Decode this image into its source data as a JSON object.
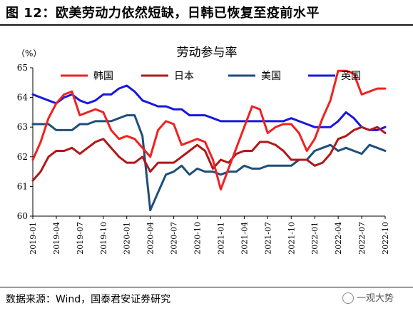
{
  "page": {
    "title": "图 12：欧美劳动力依然短缺，日韩已恢复至疫前水平",
    "source": "数据来源：Wind，国泰君安证券研究",
    "watermark": "一观大势"
  },
  "chart_data": {
    "type": "line",
    "title": "劳动参与率",
    "ylabel": "（%）",
    "xlabel": "",
    "ylim": [
      60,
      65
    ],
    "yticks": [
      60,
      61,
      62,
      63,
      64,
      65
    ],
    "grid": false,
    "legend_placement": "top",
    "xticks": [
      "2019-01",
      "2019-04",
      "2019-07",
      "2019-10",
      "2020-01",
      "2020-04",
      "2020-07",
      "2020-10",
      "2021-01",
      "2021-04",
      "2021-07",
      "2021-10",
      "2022-01",
      "2022-04",
      "2022-07",
      "2022-10"
    ],
    "x": [
      "2019-01",
      "2019-02",
      "2019-03",
      "2019-04",
      "2019-05",
      "2019-06",
      "2019-07",
      "2019-08",
      "2019-09",
      "2019-10",
      "2019-11",
      "2019-12",
      "2020-01",
      "2020-02",
      "2020-03",
      "2020-04",
      "2020-05",
      "2020-06",
      "2020-07",
      "2020-08",
      "2020-09",
      "2020-10",
      "2020-11",
      "2020-12",
      "2021-01",
      "2021-02",
      "2021-03",
      "2021-04",
      "2021-05",
      "2021-06",
      "2021-07",
      "2021-08",
      "2021-09",
      "2021-10",
      "2021-11",
      "2021-12",
      "2022-01",
      "2022-02",
      "2022-03",
      "2022-04",
      "2022-05",
      "2022-06",
      "2022-07",
      "2022-08",
      "2022-09",
      "2022-10"
    ],
    "series": [
      {
        "name": "韩国",
        "color": "#ee2222",
        "values": [
          61.9,
          62.5,
          63.3,
          63.8,
          64.1,
          64.2,
          63.4,
          63.5,
          63.6,
          63.5,
          62.9,
          62.6,
          62.7,
          62.6,
          62.3,
          62.0,
          62.9,
          63.2,
          63.1,
          62.4,
          62.5,
          62.6,
          62.5,
          61.9,
          60.9,
          61.6,
          62.3,
          63.0,
          63.7,
          63.6,
          62.8,
          63.0,
          63.1,
          63.1,
          62.8,
          62.2,
          62.6,
          63.3,
          63.9,
          64.9,
          64.9,
          64.8,
          64.1,
          64.2,
          64.3,
          64.3
        ]
      },
      {
        "name": "日本",
        "color": "#b01818",
        "values": [
          61.2,
          61.5,
          62.0,
          62.2,
          62.2,
          62.3,
          62.1,
          62.3,
          62.5,
          62.6,
          62.3,
          62.0,
          61.8,
          61.8,
          62.0,
          61.5,
          61.8,
          61.8,
          61.8,
          62.0,
          62.2,
          62.4,
          62.2,
          61.6,
          61.9,
          61.8,
          62.1,
          62.2,
          62.2,
          62.5,
          62.5,
          62.4,
          62.2,
          61.9,
          61.9,
          61.9,
          61.7,
          61.8,
          62.1,
          62.6,
          62.7,
          62.9,
          63.0,
          62.9,
          63.0,
          62.8
        ]
      },
      {
        "name": "美国",
        "color": "#1f4e79",
        "values": [
          63.1,
          63.1,
          63.1,
          62.9,
          62.9,
          62.9,
          63.1,
          63.1,
          63.2,
          63.2,
          63.2,
          63.3,
          63.4,
          63.4,
          62.7,
          60.2,
          60.8,
          61.4,
          61.5,
          61.7,
          61.4,
          61.6,
          61.5,
          61.5,
          61.4,
          61.5,
          61.5,
          61.7,
          61.6,
          61.6,
          61.7,
          61.7,
          61.7,
          61.7,
          61.9,
          61.9,
          62.2,
          62.3,
          62.4,
          62.2,
          62.3,
          62.2,
          62.1,
          62.4,
          62.3,
          62.2
        ]
      },
      {
        "name": "英国",
        "color": "#1818dd",
        "values": [
          64.1,
          64.0,
          63.9,
          63.8,
          64.0,
          64.1,
          63.9,
          63.8,
          63.9,
          64.1,
          64.1,
          64.3,
          64.4,
          64.2,
          63.9,
          63.8,
          63.7,
          63.7,
          63.6,
          63.6,
          63.4,
          63.4,
          63.4,
          63.3,
          63.2,
          63.2,
          63.2,
          63.2,
          63.2,
          63.2,
          63.2,
          63.2,
          63.2,
          63.3,
          63.2,
          63.1,
          63.0,
          63.0,
          63.0,
          63.2,
          63.5,
          63.3,
          63.0,
          62.9,
          62.9,
          63.0
        ]
      }
    ]
  }
}
